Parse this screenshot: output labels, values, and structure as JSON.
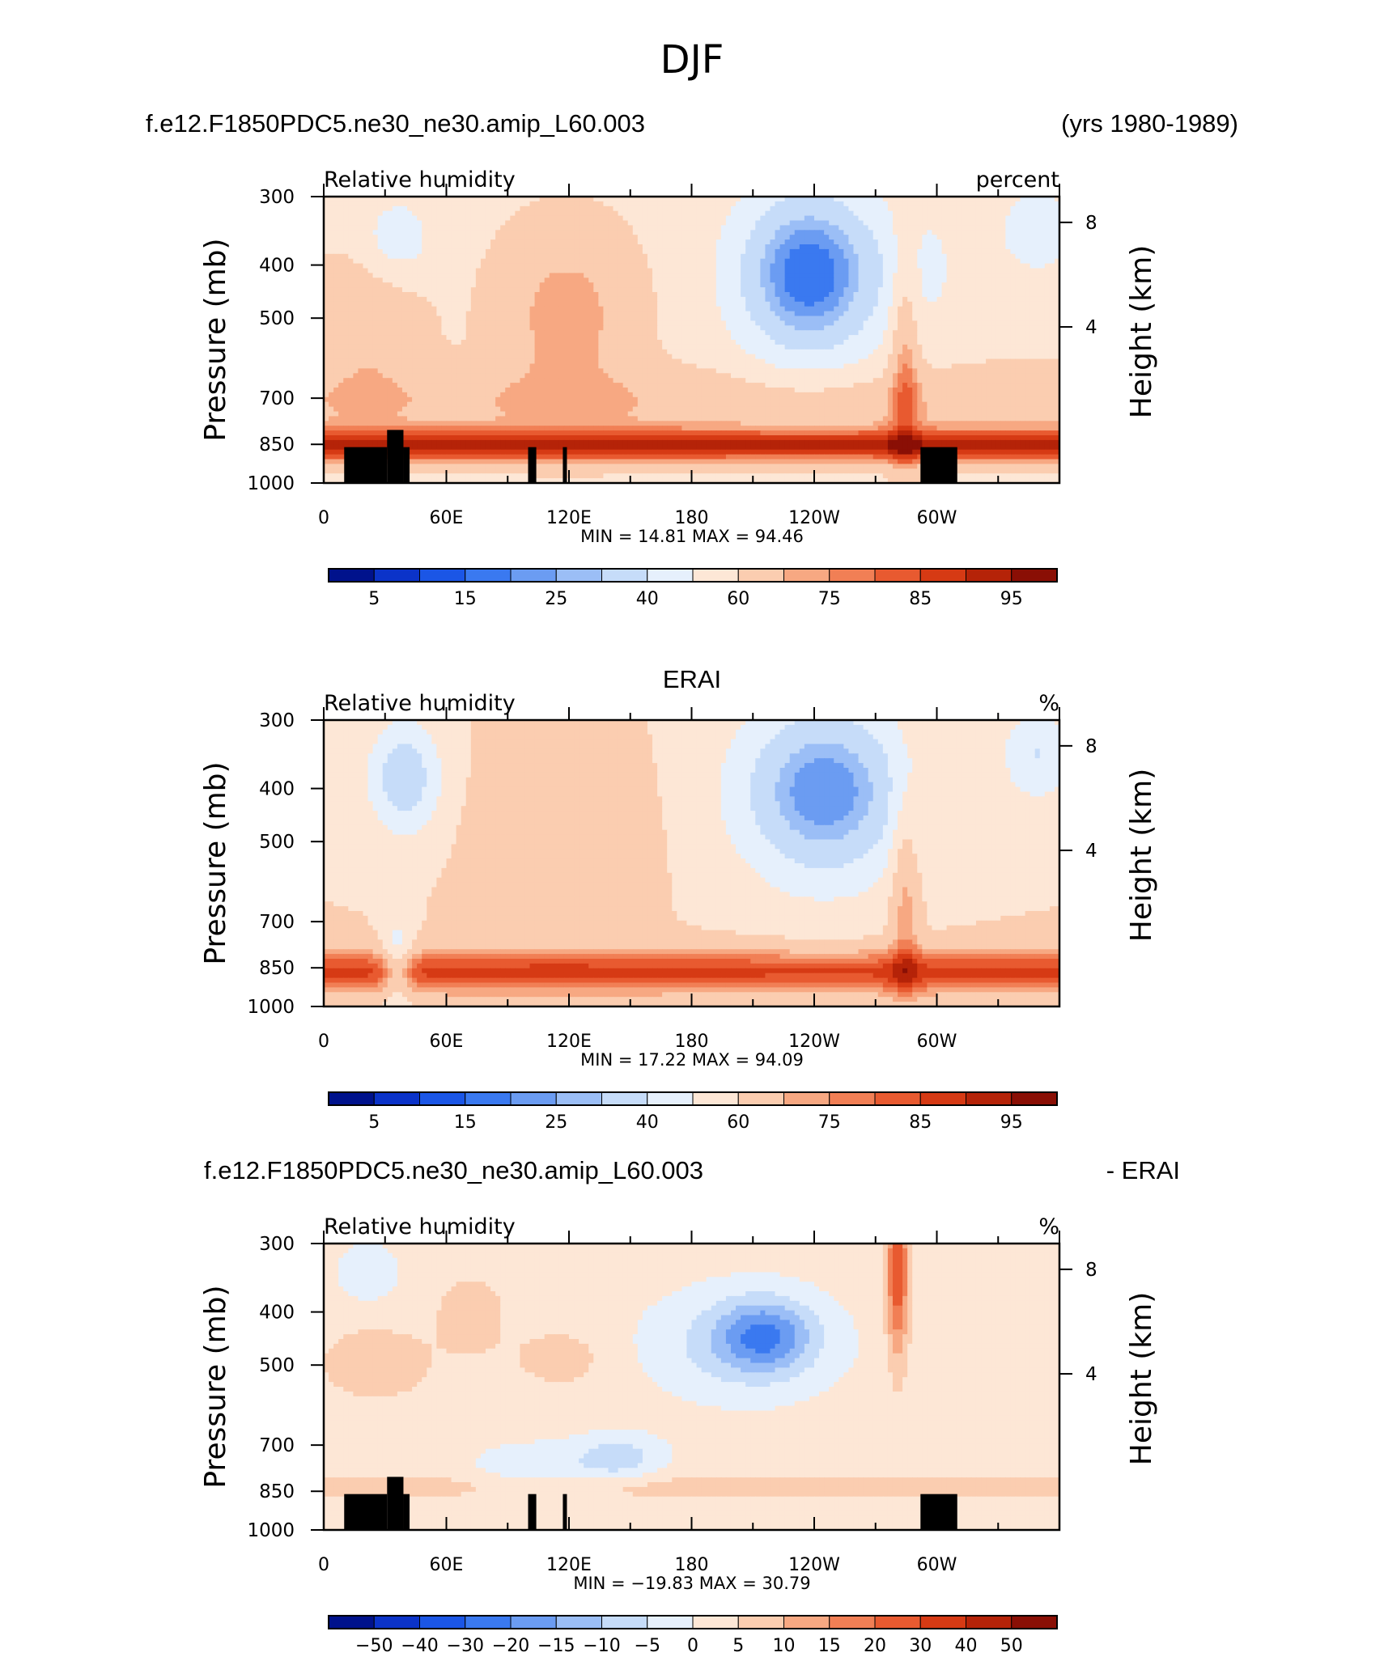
{
  "figure_title": "DJF",
  "charts": [
    {
      "header_left": "f.e12.F1850PDC5.ne30_ne30.amip_L60.003",
      "header_right": "(yrs 1980-1989)",
      "subtitle_left": "Relative humidity",
      "subtitle_right": "percent",
      "ylabel_left": "Pressure (mb)",
      "ylabel_right": "Height (km)",
      "minmax": "MIN =   14.81   MAX =   94.46",
      "colorbar_labels": [
        "5",
        "15",
        "25",
        "40",
        "60",
        "75",
        "85",
        "95"
      ],
      "colors": [
        "#00128c",
        "#0b33c9",
        "#1b56e6",
        "#3a79f0",
        "#6b9cf2",
        "#9bbef6",
        "#c6dcf9",
        "#e6f0fc",
        "#fde7d6",
        "#fbcdb0",
        "#f7a882",
        "#f17f55",
        "#e85a30",
        "#d63a14",
        "#b52308",
        "#8a0f05"
      ]
    },
    {
      "header_left": "",
      "header_center": "ERAI",
      "header_right": "",
      "subtitle_left": "Relative humidity",
      "subtitle_right": "%",
      "ylabel_left": "Pressure (mb)",
      "ylabel_right": "Height (km)",
      "minmax": "MIN =   17.22   MAX =   94.09",
      "colorbar_labels": [
        "5",
        "15",
        "25",
        "40",
        "60",
        "75",
        "85",
        "95"
      ],
      "colors": [
        "#00128c",
        "#0b33c9",
        "#1b56e6",
        "#3a79f0",
        "#6b9cf2",
        "#9bbef6",
        "#c6dcf9",
        "#e6f0fc",
        "#fde7d6",
        "#fbcdb0",
        "#f7a882",
        "#f17f55",
        "#e85a30",
        "#d63a14",
        "#b52308",
        "#8a0f05"
      ]
    },
    {
      "header_left": "f.e12.F1850PDC5.ne30_ne30.amip_L60.003",
      "header_right": "- ERAI",
      "subtitle_left": "Relative humidity",
      "subtitle_right": "%",
      "ylabel_left": "Pressure (mb)",
      "ylabel_right": "Height (km)",
      "minmax": "MIN = −19.83   MAX =   30.79",
      "colorbar_labels": [
        "−50",
        "−40",
        "−30",
        "−20",
        "−15",
        "−10",
        "−5",
        "0",
        "5",
        "10",
        "15",
        "20",
        "30",
        "40",
        "50"
      ],
      "colors": [
        "#00128c",
        "#0b33c9",
        "#1b56e6",
        "#3a79f0",
        "#6b9cf2",
        "#9bbef6",
        "#c6dcf9",
        "#e6f0fc",
        "#fde7d6",
        "#fbcdb0",
        "#f7a882",
        "#f17f55",
        "#e85a30",
        "#d63a14",
        "#b52308",
        "#8a0f05"
      ]
    }
  ],
  "chart_data": [
    {
      "type": "heatmap",
      "title": "f.e12.F1850PDC5.ne30_ne30.amip_L60.003",
      "xlabel": "",
      "ylabel": "Pressure (mb)",
      "ylabel_right": "Height (km)",
      "x_ticks": [
        "0",
        "60E",
        "120E",
        "180",
        "120W",
        "60W"
      ],
      "y_ticks": [
        "300",
        "400",
        "500",
        "700",
        "850",
        "1000"
      ],
      "right_ticks": [
        "4",
        "8"
      ],
      "ylim": [
        1000,
        300
      ],
      "levels": [
        5,
        10,
        15,
        20,
        25,
        30,
        40,
        50,
        60,
        70,
        75,
        80,
        85,
        90,
        95
      ],
      "range": {
        "min": 14.81,
        "max": 94.46
      },
      "variant": "model",
      "terrain": true
    },
    {
      "type": "heatmap",
      "title": "ERAI",
      "xlabel": "",
      "ylabel": "Pressure (mb)",
      "ylabel_right": "Height (km)",
      "x_ticks": [
        "0",
        "60E",
        "120E",
        "180",
        "120W",
        "60W"
      ],
      "y_ticks": [
        "300",
        "400",
        "500",
        "700",
        "850",
        "1000"
      ],
      "right_ticks": [
        "4",
        "8"
      ],
      "ylim": [
        1000,
        300
      ],
      "levels": [
        5,
        10,
        15,
        20,
        25,
        30,
        40,
        50,
        60,
        70,
        75,
        80,
        85,
        90,
        95
      ],
      "range": {
        "min": 17.22,
        "max": 94.09
      },
      "variant": "obs",
      "terrain": false
    },
    {
      "type": "heatmap",
      "title": "f.e12.F1850PDC5.ne30_ne30.amip_L60.003 - ERAI",
      "xlabel": "",
      "ylabel": "Pressure (mb)",
      "ylabel_right": "Height (km)",
      "x_ticks": [
        "0",
        "60E",
        "120E",
        "180",
        "120W",
        "60W"
      ],
      "y_ticks": [
        "300",
        "400",
        "500",
        "700",
        "850",
        "1000"
      ],
      "right_ticks": [
        "4",
        "8"
      ],
      "ylim": [
        1000,
        300
      ],
      "levels": [
        -50,
        -40,
        -30,
        -20,
        -15,
        -10,
        -5,
        0,
        5,
        10,
        15,
        20,
        30,
        40,
        50
      ],
      "range": {
        "min": -19.83,
        "max": 30.79
      },
      "variant": "diff",
      "terrain": true
    }
  ]
}
